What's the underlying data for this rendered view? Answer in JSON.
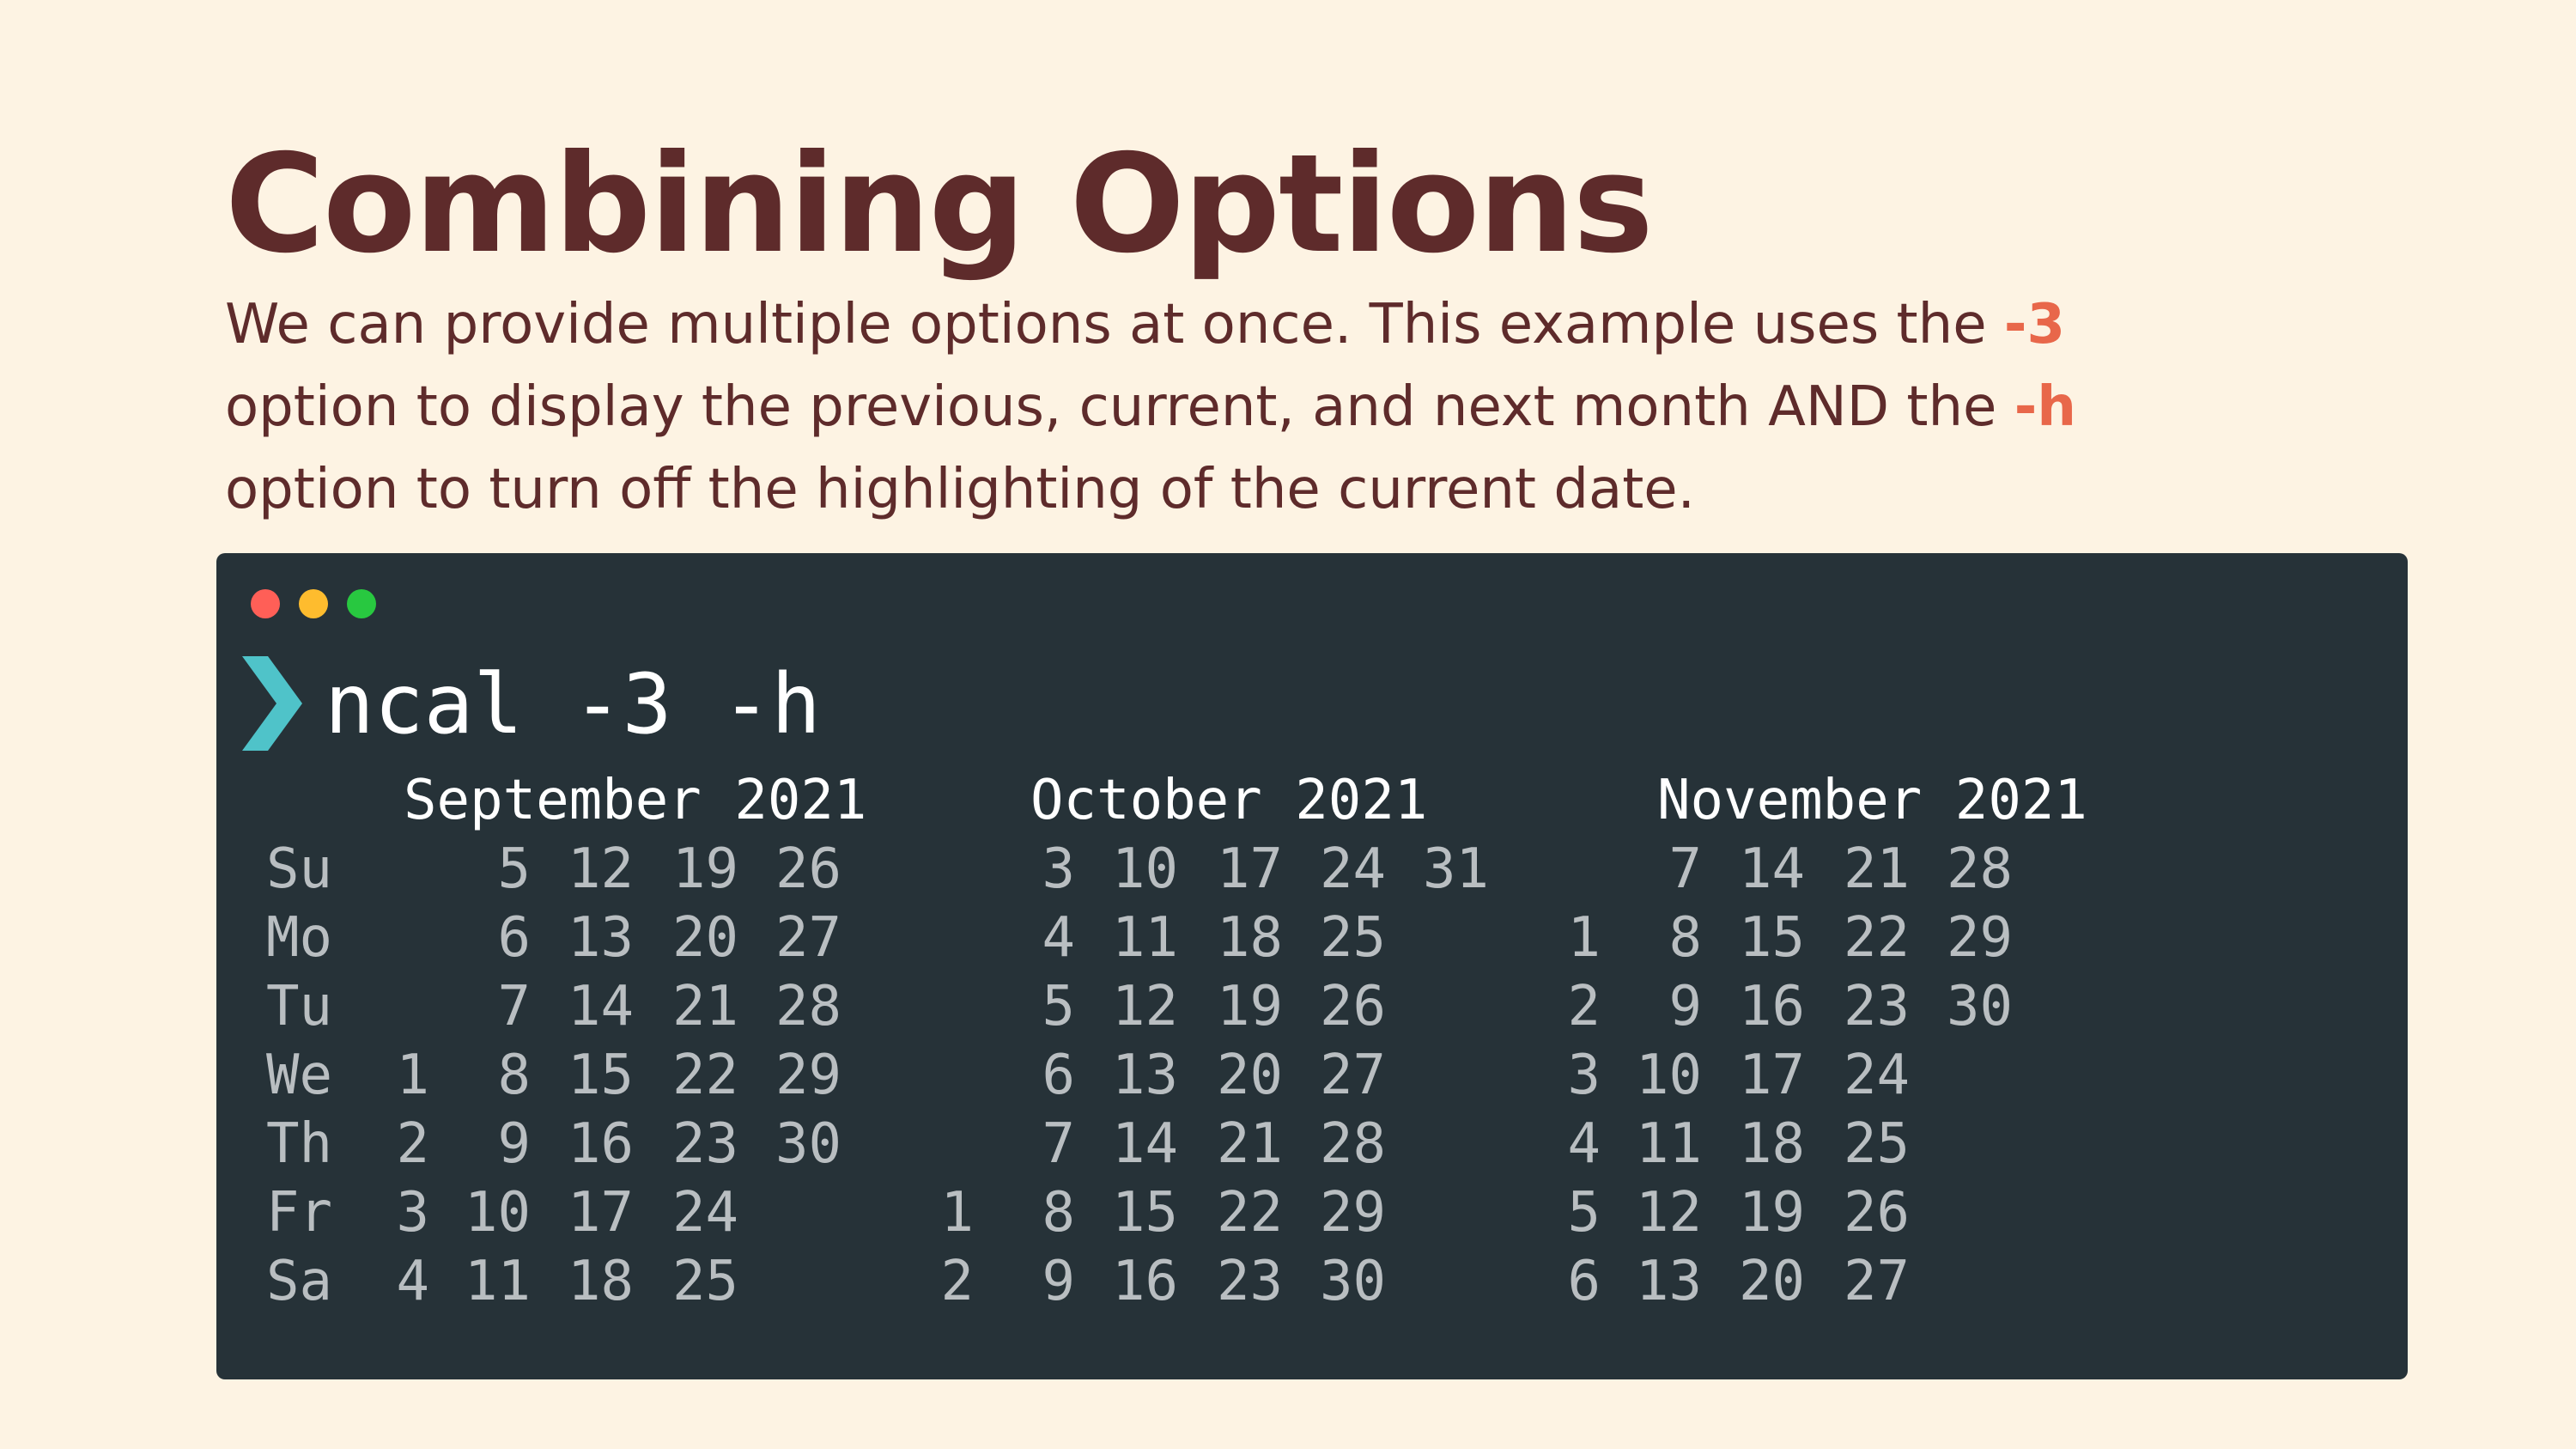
{
  "slide": {
    "title": "Combining Options",
    "description": {
      "line1_text": "We can provide multiple options at once. This example uses the ",
      "line1_option": "-3",
      "line2_text": "option to display the previous, current, and next month AND the ",
      "line2_option": "-h",
      "line3_text": "option to turn off the highlighting of the current date."
    }
  },
  "terminal": {
    "prompt_icon": "chevron-right-icon",
    "command": "ncal -3 -h",
    "months": [
      {
        "header": "September 2021",
        "rows": [
          [
            "",
            "5",
            "12",
            "19",
            "26",
            ""
          ],
          [
            "",
            "6",
            "13",
            "20",
            "27",
            ""
          ],
          [
            "",
            "7",
            "14",
            "21",
            "28",
            ""
          ],
          [
            "1",
            "8",
            "15",
            "22",
            "29",
            ""
          ],
          [
            "2",
            "9",
            "16",
            "23",
            "30",
            ""
          ],
          [
            "3",
            "10",
            "17",
            "24",
            "",
            ""
          ],
          [
            "4",
            "11",
            "18",
            "25",
            "",
            ""
          ]
        ]
      },
      {
        "header": "October 2021",
        "rows": [
          [
            "",
            "3",
            "10",
            "17",
            "24",
            "31"
          ],
          [
            "",
            "4",
            "11",
            "18",
            "25",
            ""
          ],
          [
            "",
            "5",
            "12",
            "19",
            "26",
            ""
          ],
          [
            "",
            "6",
            "13",
            "20",
            "27",
            ""
          ],
          [
            "",
            "7",
            "14",
            "21",
            "28",
            ""
          ],
          [
            "1",
            "8",
            "15",
            "22",
            "29",
            ""
          ],
          [
            "2",
            "9",
            "16",
            "23",
            "30",
            ""
          ]
        ]
      },
      {
        "header": "November 2021",
        "rows": [
          [
            "",
            "7",
            "14",
            "21",
            "28",
            ""
          ],
          [
            "1",
            "8",
            "15",
            "22",
            "29",
            ""
          ],
          [
            "2",
            "9",
            "16",
            "23",
            "30",
            ""
          ],
          [
            "3",
            "10",
            "17",
            "24",
            "",
            ""
          ],
          [
            "4",
            "11",
            "18",
            "25",
            "",
            ""
          ],
          [
            "5",
            "12",
            "19",
            "26",
            "",
            ""
          ],
          [
            "6",
            "13",
            "20",
            "27",
            "",
            ""
          ]
        ]
      }
    ],
    "weekdays": [
      "Su",
      "Mo",
      "Tu",
      "We",
      "Th",
      "Fr",
      "Sa"
    ]
  },
  "colors": {
    "background": "#fdf3e3",
    "title": "#5e2b2b",
    "option_highlight": "#e8674a",
    "terminal_bg": "#263238",
    "prompt_arrow": "#4fc3c9",
    "dot_red": "#ff5f57",
    "dot_yellow": "#febc2e",
    "dot_green": "#28c840"
  }
}
